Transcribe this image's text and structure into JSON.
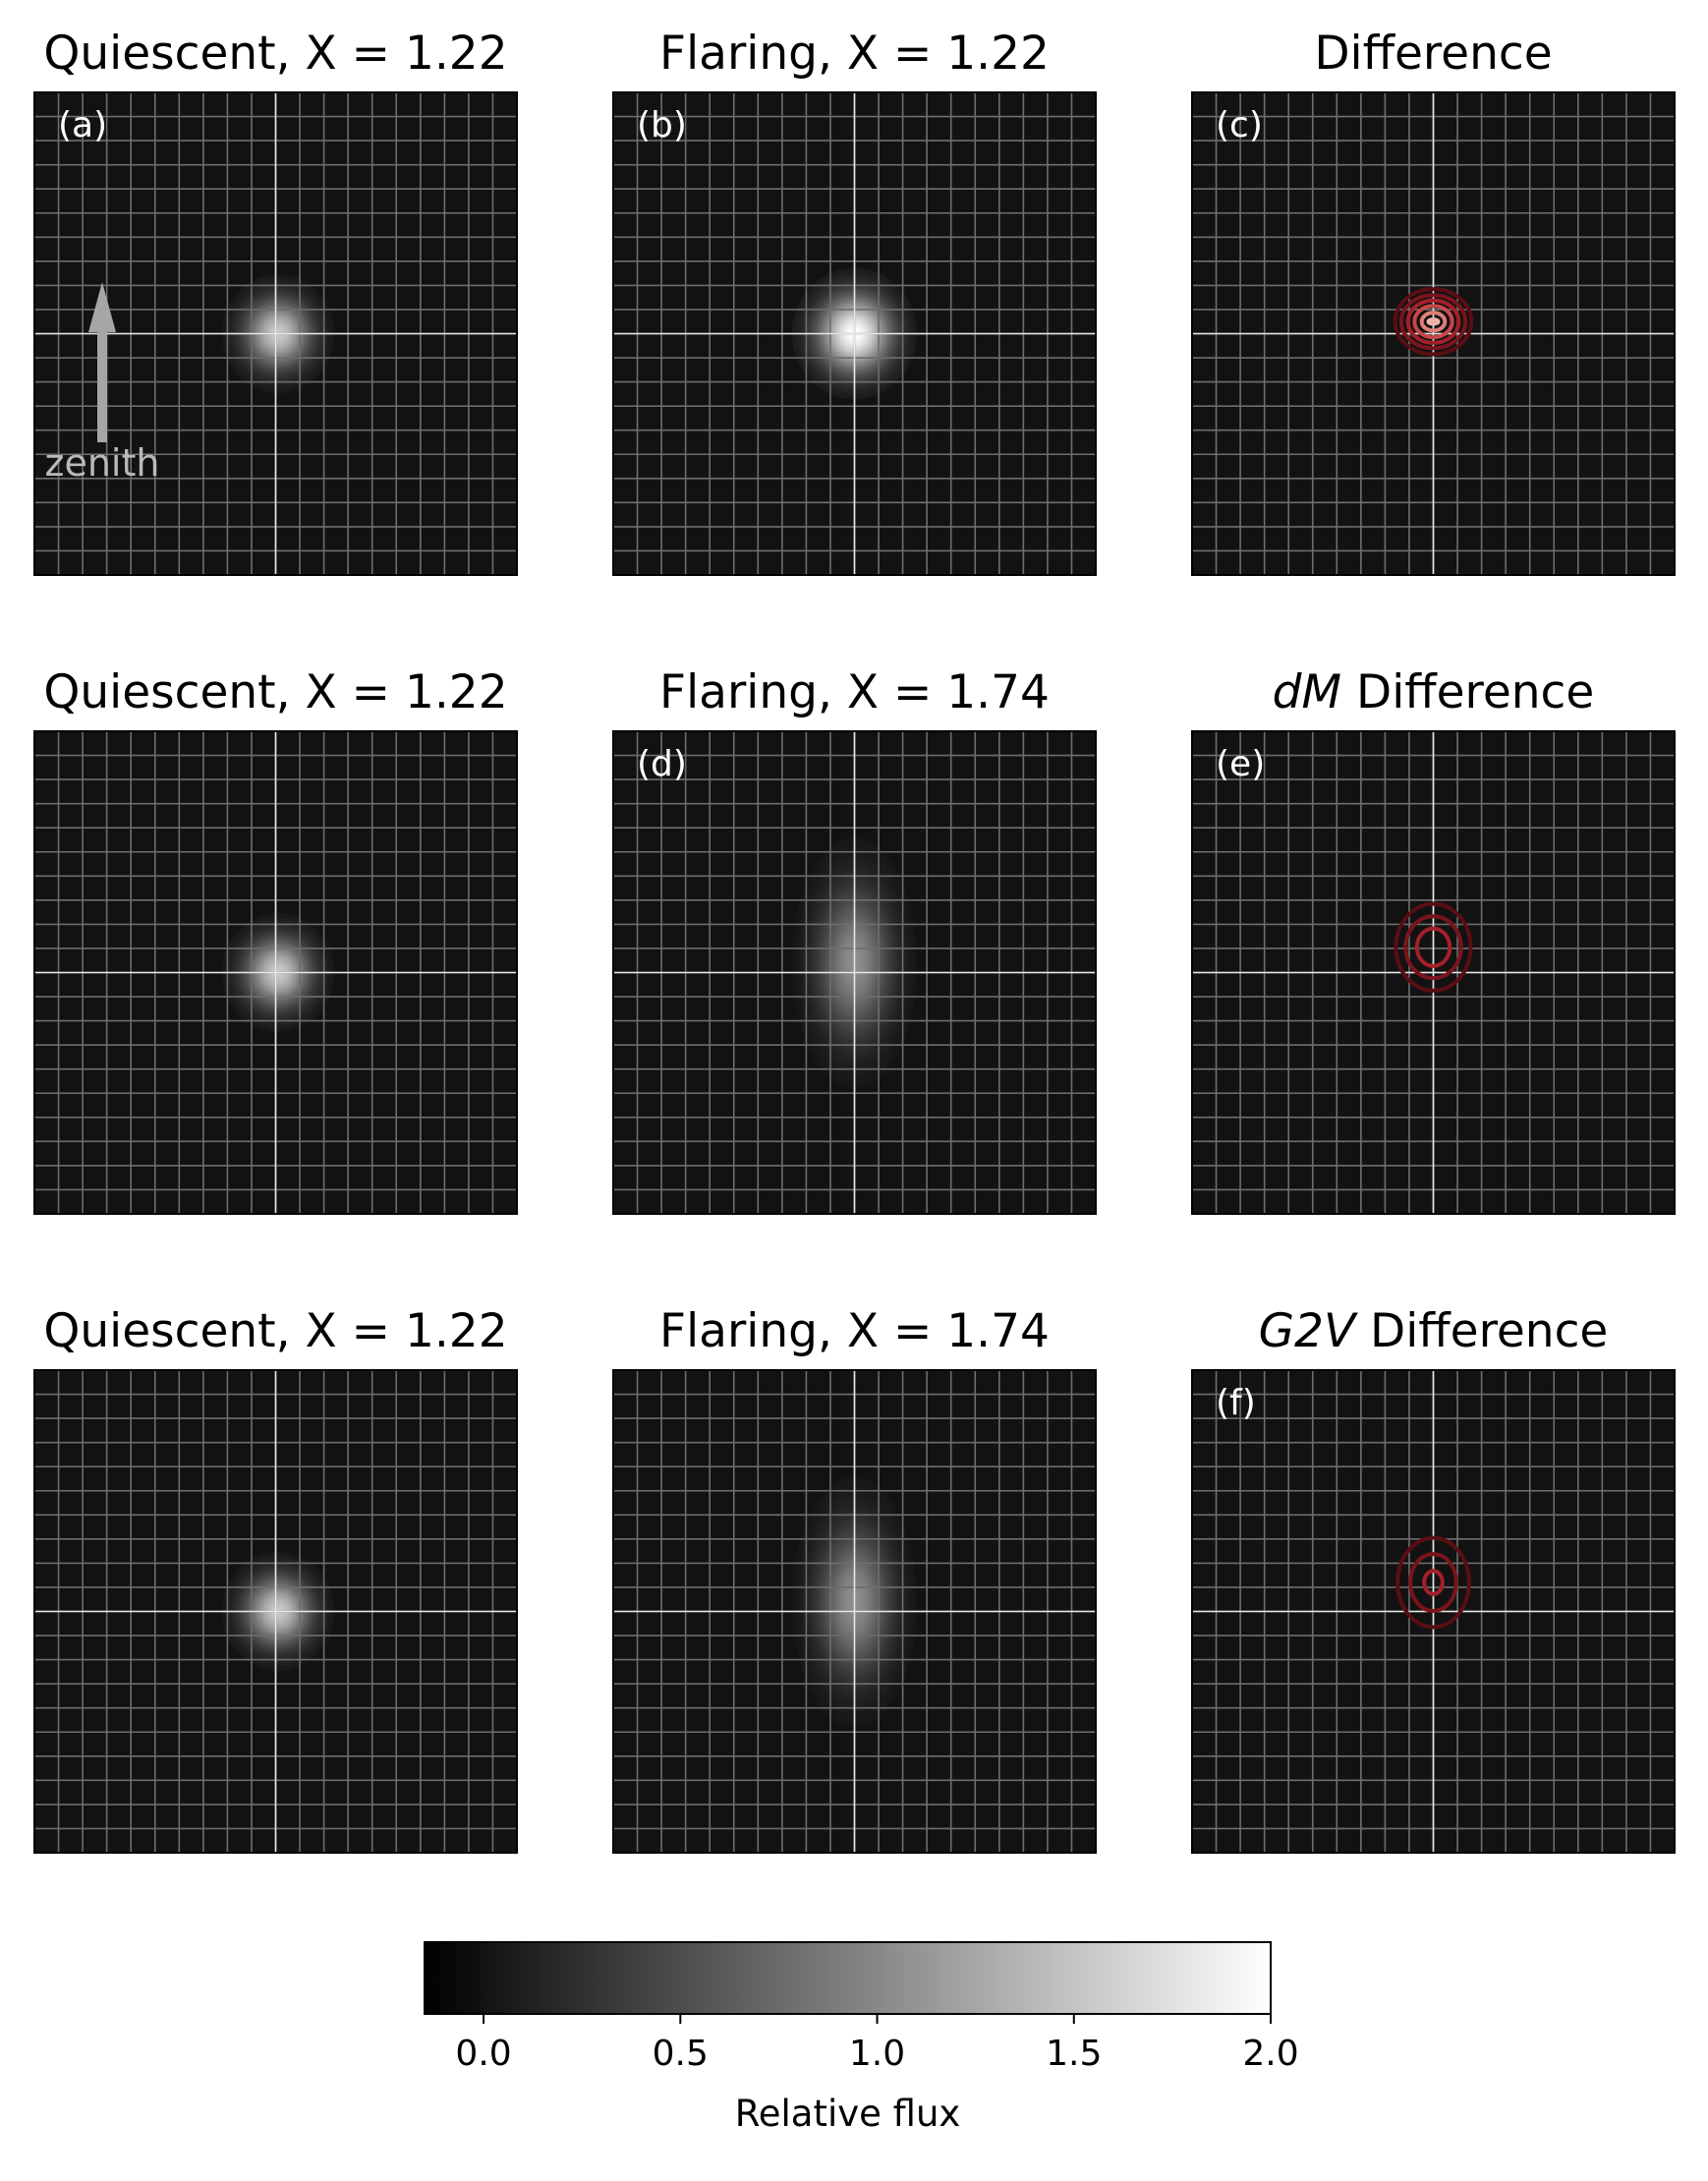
{
  "chart_data": {
    "type": "heatmap",
    "colormap": "gray",
    "grid": true,
    "colorbar": {
      "label": "Relative flux",
      "range": [
        -0.15,
        2.0
      ],
      "ticks": [
        0.0,
        0.5,
        1.0,
        1.5,
        2.0
      ],
      "tick_labels": [
        "0.0",
        "0.5",
        "1.0",
        "1.5",
        "2.0"
      ],
      "placement": "bottom"
    },
    "panels": [
      {
        "row": 0,
        "col": 0,
        "title": "Quiescent, X = 1.22",
        "title_em": "",
        "title_rest": "",
        "label": "(a)",
        "kind": "image",
        "sigma_x": 0.9,
        "sigma_y": 0.95,
        "offset_x": 0.1,
        "offset_y": 0.0,
        "peak": 1.55
      },
      {
        "row": 0,
        "col": 1,
        "title": "Flaring, X = 1.22",
        "title_em": "",
        "title_rest": "",
        "label": "(b)",
        "kind": "image",
        "sigma_x": 1.0,
        "sigma_y": 1.05,
        "offset_x": 0.0,
        "offset_y": 0.0,
        "peak": 2.0
      },
      {
        "row": 0,
        "col": 2,
        "title": "Difference",
        "title_em": "",
        "title_rest": "",
        "label": "(c)",
        "kind": "contour",
        "offset_x": 0.0,
        "offset_y": -0.5,
        "ellipses": [
          [
            0.2,
            0.09
          ],
          [
            0.48,
            0.37
          ],
          [
            0.78,
            0.65
          ],
          [
            1.05,
            0.88
          ],
          [
            1.33,
            1.1
          ],
          [
            1.58,
            1.35
          ]
        ]
      },
      {
        "row": 1,
        "col": 0,
        "title": "Quiescent, X = 1.22",
        "title_em": "",
        "title_rest": "",
        "label": "",
        "kind": "image",
        "sigma_x": 0.9,
        "sigma_y": 0.95,
        "offset_x": 0.1,
        "offset_y": 0.0,
        "peak": 1.55
      },
      {
        "row": 1,
        "col": 1,
        "title": "Flaring, X = 1.74",
        "title_em": "",
        "title_rest": "",
        "label": "(d)",
        "kind": "image",
        "sigma_x": 1.0,
        "sigma_y": 2.0,
        "offset_x": 0.0,
        "offset_y": -0.4,
        "peak": 1.05
      },
      {
        "row": 1,
        "col": 2,
        "title": "",
        "title_em": "dM",
        "title_rest": " Difference",
        "label": "(e)",
        "kind": "contour",
        "offset_x": 0.0,
        "offset_y": -1.05,
        "ellipses": [
          [
            0.68,
            0.78
          ],
          [
            1.15,
            1.28
          ],
          [
            1.55,
            1.8
          ]
        ]
      },
      {
        "row": 2,
        "col": 0,
        "title": "Quiescent, X = 1.22",
        "title_em": "",
        "title_rest": "",
        "label": "",
        "kind": "image",
        "sigma_x": 0.9,
        "sigma_y": 0.95,
        "offset_x": 0.1,
        "offset_y": 0.0,
        "peak": 1.55
      },
      {
        "row": 2,
        "col": 1,
        "title": "Flaring, X = 1.74",
        "title_em": "",
        "title_rest": "",
        "label": "",
        "kind": "image",
        "sigma_x": 1.0,
        "sigma_y": 2.0,
        "offset_x": 0.0,
        "offset_y": -0.4,
        "peak": 1.05
      },
      {
        "row": 2,
        "col": 2,
        "title": "",
        "title_em": "G2V",
        "title_rest": " Difference",
        "label": "(f)",
        "kind": "contour",
        "offset_x": 0.0,
        "offset_y": -1.2,
        "ellipses": [
          [
            0.38,
            0.48
          ],
          [
            0.95,
            1.18
          ],
          [
            1.48,
            1.85
          ]
        ]
      }
    ],
    "arrow": {
      "label": "zenith",
      "direction": "up",
      "panel": "(a)"
    }
  }
}
